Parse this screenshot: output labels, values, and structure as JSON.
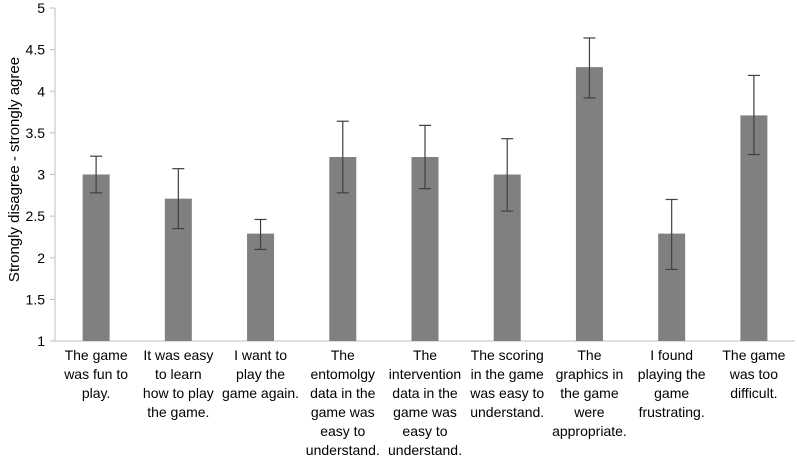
{
  "chart_data": {
    "type": "bar",
    "ylabel": "Strongly disagree - strongly agree",
    "xlabel": "",
    "ylim": [
      1,
      5
    ],
    "yticks": [
      "1",
      "1.5",
      "2",
      "2.5",
      "3",
      "3.5",
      "4",
      "4.5",
      "5"
    ],
    "grid": false,
    "categories": [
      [
        "The game",
        "was fun to",
        "play."
      ],
      [
        "It was easy",
        "to learn",
        "how to play",
        "the game."
      ],
      [
        "I want to",
        "play the",
        "game again."
      ],
      [
        "The",
        "entomolgy",
        "data in the",
        "game was",
        "easy to",
        "understand."
      ],
      [
        "The",
        "intervention",
        "data in the",
        "game was",
        "easy to",
        "understand."
      ],
      [
        "The scoring",
        "in the game",
        "was easy to",
        "understand."
      ],
      [
        "The",
        "graphics in",
        "the game",
        "were",
        "appropriate."
      ],
      [
        "I found",
        "playing the",
        "game",
        "frustrating."
      ],
      [
        "The game",
        "was too",
        "difficult."
      ]
    ],
    "values": [
      3.0,
      2.71,
      2.29,
      3.21,
      3.21,
      3.0,
      4.29,
      2.29,
      3.71
    ],
    "error_low": [
      2.78,
      2.35,
      2.1,
      2.78,
      2.83,
      2.56,
      3.92,
      1.86,
      3.24
    ],
    "error_high": [
      3.22,
      3.07,
      2.46,
      3.64,
      3.59,
      3.43,
      4.64,
      2.7,
      4.19
    ],
    "colors": {
      "bar": "#808080",
      "axis": "#bfbfbf",
      "error": "#404040"
    }
  }
}
